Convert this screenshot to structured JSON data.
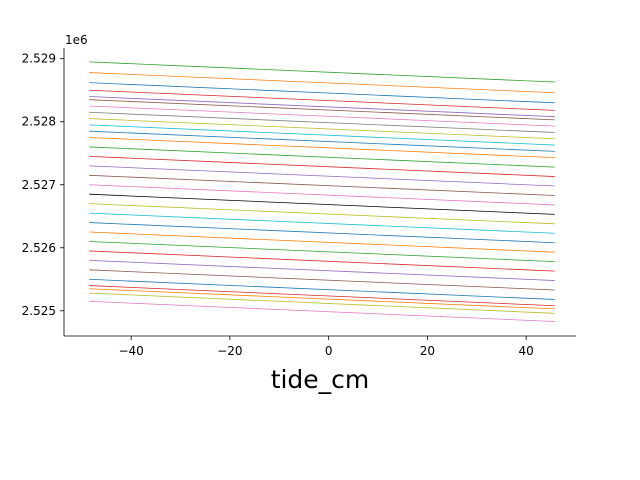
{
  "chart_data": {
    "type": "line",
    "xlabel": "tide_cm",
    "offset_label": "1e6",
    "x": [
      -48.5,
      45.8
    ],
    "xlim": [
      -53.6,
      50.1
    ],
    "xticks": [
      {
        "value": -40,
        "label": "−40"
      },
      {
        "value": -20,
        "label": "−20"
      },
      0,
      20,
      40
    ],
    "ylim": [
      2.5246,
      2.52917
    ],
    "yticks": [
      2.525,
      2.526,
      2.527,
      2.528,
      2.529
    ],
    "series": [
      {
        "color": "#2ca02c",
        "values": [
          2.52895,
          2.52863
        ]
      },
      {
        "color": "#ff7f0e",
        "values": [
          2.52878,
          2.52846
        ]
      },
      {
        "color": "#1f77b4",
        "values": [
          2.52862,
          2.5283
        ]
      },
      {
        "color": "#d62728",
        "values": [
          2.5285,
          2.52818
        ]
      },
      {
        "color": "#9467bd",
        "values": [
          2.5284,
          2.52808
        ]
      },
      {
        "color": "#8c564b",
        "values": [
          2.52835,
          2.52803
        ]
      },
      {
        "color": "#e377c2",
        "values": [
          2.52825,
          2.52793
        ]
      },
      {
        "color": "#7f7f7f",
        "values": [
          2.52815,
          2.52783
        ]
      },
      {
        "color": "#bcbd22",
        "values": [
          2.52805,
          2.52773
        ]
      },
      {
        "color": "#17becf",
        "values": [
          2.52795,
          2.52763
        ]
      },
      {
        "color": "#1f77b4",
        "values": [
          2.52785,
          2.52753
        ]
      },
      {
        "color": "#ff7f0e",
        "values": [
          2.52775,
          2.52743
        ]
      },
      {
        "color": "#2ca02c",
        "values": [
          2.5276,
          2.52728
        ]
      },
      {
        "color": "#d62728",
        "values": [
          2.52745,
          2.52713
        ]
      },
      {
        "color": "#9467bd",
        "values": [
          2.5273,
          2.52698
        ]
      },
      {
        "color": "#8c564b",
        "values": [
          2.52715,
          2.52683
        ]
      },
      {
        "color": "#e377c2",
        "values": [
          2.527,
          2.52668
        ]
      },
      {
        "color": "#000000",
        "values": [
          2.52685,
          2.52653
        ]
      },
      {
        "color": "#bcbd22",
        "values": [
          2.5267,
          2.52638
        ]
      },
      {
        "color": "#17becf",
        "values": [
          2.52655,
          2.52623
        ]
      },
      {
        "color": "#1f77b4",
        "values": [
          2.5264,
          2.52608
        ]
      },
      {
        "color": "#ff7f0e",
        "values": [
          2.52625,
          2.52593
        ]
      },
      {
        "color": "#2ca02c",
        "values": [
          2.5261,
          2.52578
        ]
      },
      {
        "color": "#d62728",
        "values": [
          2.52595,
          2.52563
        ]
      },
      {
        "color": "#9467bd",
        "values": [
          2.5258,
          2.52548
        ]
      },
      {
        "color": "#8c564b",
        "values": [
          2.52565,
          2.52533
        ]
      },
      {
        "color": "#1f77b4",
        "values": [
          2.5255,
          2.52518
        ]
      },
      {
        "color": "#d62728",
        "values": [
          2.5254,
          2.52508
        ]
      },
      {
        "color": "#ff7f0e",
        "values": [
          2.52535,
          2.52503
        ]
      },
      {
        "color": "#bcbd22",
        "values": [
          2.52528,
          2.52496
        ]
      },
      {
        "color": "#e377c2",
        "values": [
          2.52515,
          2.52483
        ]
      }
    ]
  }
}
